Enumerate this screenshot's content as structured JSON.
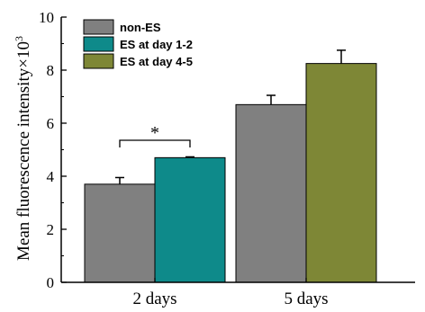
{
  "chart_data": {
    "type": "bar",
    "categories": [
      "2 days",
      "5 days"
    ],
    "series": [
      {
        "name": "non-ES",
        "values": [
          3.7,
          6.7
        ],
        "errors": [
          0.25,
          0.35
        ],
        "color": "#808080"
      },
      {
        "name": "ES at day 1-2",
        "values": [
          4.7,
          null
        ],
        "errors": [
          0.03,
          null
        ],
        "color": "#0e8a8a"
      },
      {
        "name": "ES at day 4-5",
        "values": [
          null,
          8.25
        ],
        "errors": [
          null,
          0.5
        ],
        "color": "#7e8736"
      }
    ],
    "ylabel": "Mean fluorescence intensity×10",
    "ylabel_exponent": "3",
    "ylim": [
      0,
      10
    ],
    "yticks": [
      "0",
      "2",
      "4",
      "6",
      "8",
      "10"
    ],
    "legend_position": "top-left",
    "grid": false,
    "annotations": [
      {
        "text": "*",
        "between": [
          "non-ES",
          "ES at day 1-2"
        ],
        "category": "2 days"
      }
    ]
  }
}
